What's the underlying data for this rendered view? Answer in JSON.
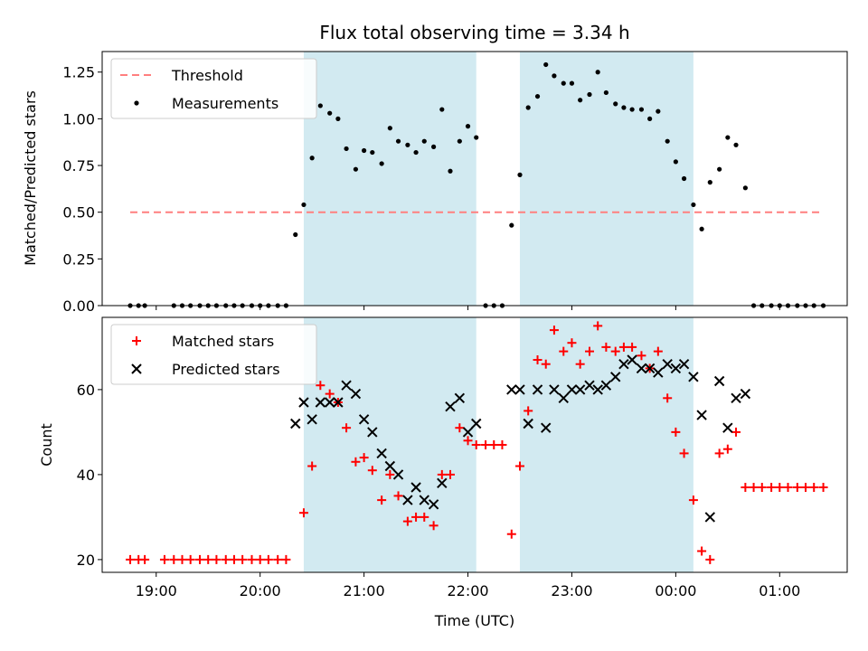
{
  "chart_data": {
    "title": "Flux total observing time = 3.34 h",
    "xlabel": "Time (UTC)",
    "x_ticks": [
      "19:00",
      "20:00",
      "21:00",
      "22:00",
      "23:00",
      "00:00",
      "01:00"
    ],
    "x_unit": "hours after 18:00 UTC",
    "x_range": [
      0.48,
      7.65
    ],
    "shaded_intervals": [
      [
        2.42,
        4.08
      ],
      [
        4.5,
        6.17
      ]
    ],
    "colors": {
      "shade": "#add8e6",
      "threshold": "#ff7f7f",
      "measurements": "#000000",
      "matched": "#ff0000",
      "predicted": "#000000"
    },
    "panels": [
      {
        "type": "scatter",
        "ylabel": "Matched/Predicted stars",
        "ylim": [
          0,
          1.36
        ],
        "yticks": [
          "0.00",
          "0.25",
          "0.50",
          "0.75",
          "1.00",
          "1.25"
        ],
        "legend_position": "upper-left",
        "legend": [
          "Threshold",
          "Measurements"
        ],
        "threshold": {
          "name": "Threshold",
          "x": [
            0.75,
            7.42
          ],
          "y": 0.5
        },
        "measurements": {
          "name": "Measurements",
          "x": [
            0.75,
            0.83,
            0.89,
            1.17,
            1.25,
            1.33,
            1.42,
            1.5,
            1.58,
            1.67,
            1.75,
            1.83,
            1.92,
            2.0,
            2.08,
            2.17,
            2.25,
            2.34,
            2.42,
            2.5,
            2.58,
            2.67,
            2.75,
            2.83,
            2.92,
            3.0,
            3.08,
            3.17,
            3.25,
            3.33,
            3.42,
            3.5,
            3.58,
            3.67,
            3.75,
            3.83,
            3.92,
            4.0,
            4.08,
            4.17,
            4.25,
            4.33,
            4.42,
            4.5,
            4.58,
            4.67,
            4.75,
            4.83,
            4.92,
            5.0,
            5.08,
            5.17,
            5.25,
            5.33,
            5.42,
            5.5,
            5.58,
            5.67,
            5.75,
            5.83,
            5.92,
            6.0,
            6.08,
            6.17,
            6.25,
            6.33,
            6.42,
            6.5,
            6.58,
            6.67,
            6.75,
            6.83,
            6.92,
            7.0,
            7.08,
            7.17,
            7.25,
            7.33,
            7.42
          ],
          "y": [
            0.0,
            0.0,
            0.0,
            0.0,
            0.0,
            0.0,
            0.0,
            0.0,
            0.0,
            0.0,
            0.0,
            0.0,
            0.0,
            0.0,
            0.0,
            0.0,
            0.0,
            0.38,
            0.54,
            0.79,
            1.07,
            1.03,
            1.0,
            0.84,
            0.73,
            0.83,
            0.82,
            0.76,
            0.95,
            0.88,
            0.86,
            0.82,
            0.88,
            0.85,
            1.05,
            0.72,
            0.88,
            0.96,
            0.9,
            0.0,
            0.0,
            0.0,
            0.43,
            0.7,
            1.06,
            1.12,
            1.29,
            1.23,
            1.19,
            1.19,
            1.1,
            1.13,
            1.25,
            1.14,
            1.08,
            1.06,
            1.05,
            1.05,
            1.0,
            1.04,
            0.88,
            0.77,
            0.68,
            0.54,
            0.41,
            0.66,
            0.73,
            0.9,
            0.86,
            0.63,
            0.0,
            0.0,
            0.0,
            0.0,
            0.0,
            0.0,
            0.0,
            0.0,
            0.0
          ]
        }
      },
      {
        "type": "scatter",
        "ylabel": "Count",
        "ylim": [
          17,
          77
        ],
        "yticks": [
          "20",
          "40",
          "60"
        ],
        "legend_position": "upper-left",
        "legend": [
          "Matched stars",
          "Predicted stars"
        ],
        "series": [
          {
            "name": "Matched stars",
            "marker": "+",
            "x": [
              0.75,
              0.83,
              0.89,
              1.08,
              1.17,
              1.25,
              1.33,
              1.42,
              1.5,
              1.58,
              1.67,
              1.75,
              1.83,
              1.92,
              2.0,
              2.08,
              2.17,
              2.25,
              2.42,
              2.5,
              2.58,
              2.67,
              2.75,
              2.83,
              2.92,
              3.0,
              3.08,
              3.17,
              3.25,
              3.33,
              3.42,
              3.5,
              3.58,
              3.67,
              3.75,
              3.83,
              3.92,
              4.0,
              4.08,
              4.17,
              4.25,
              4.33,
              4.42,
              4.5,
              4.58,
              4.67,
              4.75,
              4.83,
              4.92,
              5.0,
              5.08,
              5.17,
              5.25,
              5.33,
              5.42,
              5.5,
              5.58,
              5.67,
              5.75,
              5.83,
              5.92,
              6.0,
              6.08,
              6.17,
              6.25,
              6.33,
              6.42,
              6.5,
              6.58,
              6.67,
              6.75,
              6.83,
              6.92,
              7.0,
              7.08,
              7.17,
              7.25,
              7.33,
              7.42
            ],
            "y": [
              20,
              20,
              20,
              20,
              20,
              20,
              20,
              20,
              20,
              20,
              20,
              20,
              20,
              20,
              20,
              20,
              20,
              20,
              31,
              42,
              61,
              59,
              57,
              51,
              43,
              44,
              41,
              34,
              40,
              35,
              29,
              30,
              30,
              28,
              40,
              40,
              51,
              48,
              47,
              47,
              47,
              47,
              26,
              42,
              55,
              67,
              66,
              74,
              69,
              71,
              66,
              69,
              75,
              70,
              69,
              70,
              70,
              68,
              65,
              69,
              58,
              50,
              45,
              34,
              22,
              20,
              45,
              46,
              50,
              37,
              37,
              37,
              37,
              37,
              37,
              37,
              37,
              37,
              37
            ]
          },
          {
            "name": "Predicted stars",
            "marker": "x",
            "x": [
              2.34,
              2.42,
              2.5,
              2.58,
              2.67,
              2.75,
              2.83,
              2.92,
              3.0,
              3.08,
              3.17,
              3.25,
              3.33,
              3.42,
              3.5,
              3.58,
              3.67,
              3.75,
              3.83,
              3.92,
              4.0,
              4.08,
              4.42,
              4.5,
              4.58,
              4.67,
              4.75,
              4.83,
              4.92,
              5.0,
              5.08,
              5.17,
              5.25,
              5.33,
              5.42,
              5.5,
              5.58,
              5.67,
              5.75,
              5.83,
              5.92,
              6.0,
              6.08,
              6.17,
              6.25,
              6.33,
              6.42,
              6.5,
              6.58,
              6.67
            ],
            "y": [
              52,
              57,
              53,
              57,
              57,
              57,
              61,
              59,
              53,
              50,
              45,
              42,
              40,
              34,
              37,
              34,
              33,
              38,
              56,
              58,
              50,
              52,
              60,
              60,
              52,
              60,
              51,
              60,
              58,
              60,
              60,
              61,
              60,
              61,
              63,
              66,
              67,
              65,
              65,
              64,
              66,
              65,
              66,
              63,
              54,
              30,
              62,
              51,
              58,
              59
            ]
          }
        ]
      }
    ]
  }
}
